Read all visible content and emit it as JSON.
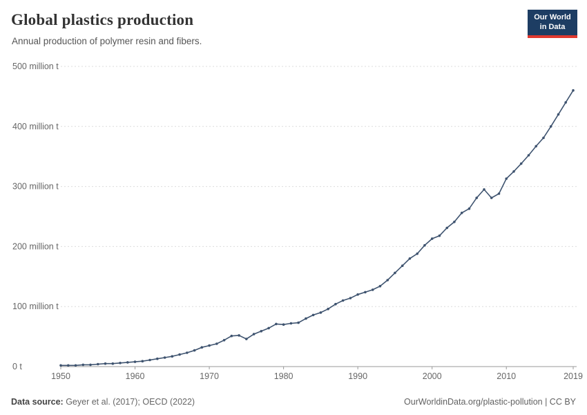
{
  "header": {
    "title": "Global plastics production",
    "subtitle": "Annual production of polymer resin and fibers.",
    "logo": {
      "line1": "Our World",
      "line2": "in Data",
      "bg": "#1d3d63",
      "accent": "#e0392f"
    }
  },
  "chart_data": {
    "type": "line",
    "title": "Global plastics production",
    "unit": "million t",
    "ylim": [
      0,
      500
    ],
    "yticks": [
      0,
      100,
      200,
      300,
      400,
      500
    ],
    "ytick_labels": [
      "0 t",
      "100 million t",
      "200 million t",
      "300 million t",
      "400 million t",
      "500 million t"
    ],
    "xticks": [
      1950,
      1960,
      1970,
      1980,
      1990,
      2000,
      2010,
      2019
    ],
    "grid": "dashed-horizontal",
    "legend": "none",
    "line_color": "#3e536f",
    "x": [
      1950,
      1951,
      1952,
      1953,
      1954,
      1955,
      1956,
      1957,
      1958,
      1959,
      1960,
      1961,
      1962,
      1963,
      1964,
      1965,
      1966,
      1967,
      1968,
      1969,
      1970,
      1971,
      1972,
      1973,
      1974,
      1975,
      1976,
      1977,
      1978,
      1979,
      1980,
      1981,
      1982,
      1983,
      1984,
      1985,
      1986,
      1987,
      1988,
      1989,
      1990,
      1991,
      1992,
      1993,
      1994,
      1995,
      1996,
      1997,
      1998,
      1999,
      2000,
      2001,
      2002,
      2003,
      2004,
      2005,
      2006,
      2007,
      2008,
      2009,
      2010,
      2011,
      2012,
      2013,
      2014,
      2015,
      2016,
      2017,
      2018,
      2019
    ],
    "values": [
      2,
      2,
      2,
      3,
      3,
      4,
      5,
      5,
      6,
      7,
      8,
      9,
      11,
      13,
      15,
      17,
      20,
      23,
      27,
      32,
      35,
      38,
      44,
      51,
      52,
      46,
      54,
      59,
      64,
      71,
      70,
      72,
      73,
      80,
      86,
      90,
      96,
      104,
      110,
      114,
      120,
      124,
      128,
      134,
      144,
      156,
      168,
      180,
      188,
      202,
      213,
      218,
      231,
      241,
      256,
      263,
      281,
      295,
      281,
      288,
      313,
      325,
      338,
      352,
      367,
      381,
      400,
      420,
      440,
      460
    ]
  },
  "footer": {
    "source_label": "Data source:",
    "source_text": " Geyer et al. (2017); OECD (2022)",
    "right_text": "OurWorldinData.org/plastic-pollution | CC BY"
  }
}
